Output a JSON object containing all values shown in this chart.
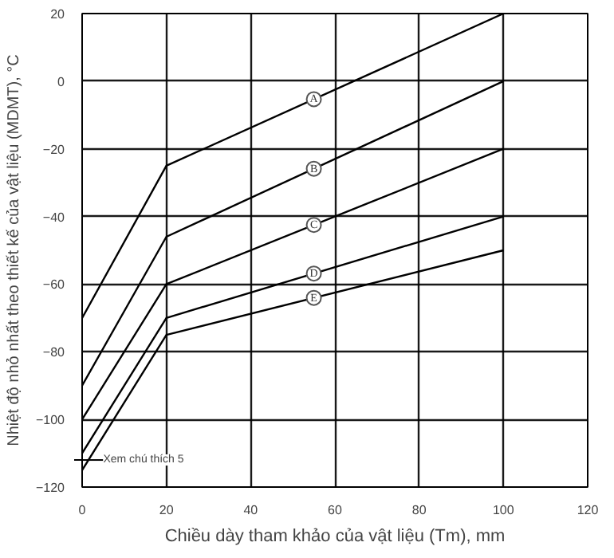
{
  "chart_data": {
    "type": "line",
    "xlabel": "Chiều dày tham khảo của vật liệu (Tm), mm",
    "ylabel": "Nhiệt độ nhỏ nhất theo thiết kế của vật liệu (MDMT), °C",
    "x": [
      0,
      20,
      100
    ],
    "series": [
      {
        "name": "A",
        "color": "#000000",
        "values": [
          -70,
          -25,
          20
        ]
      },
      {
        "name": "B",
        "color": "#000000",
        "values": [
          -90,
          -46,
          0
        ]
      },
      {
        "name": "C",
        "color": "#000000",
        "values": [
          -100,
          -60,
          -20
        ]
      },
      {
        "name": "D",
        "color": "#000000",
        "values": [
          -110,
          -70,
          -40
        ]
      },
      {
        "name": "E",
        "color": "#000000",
        "values": [
          -115,
          -75,
          -50
        ]
      }
    ],
    "xlim": [
      0,
      120
    ],
    "ylim": [
      -120,
      20
    ],
    "xticks": [
      0,
      20,
      40,
      60,
      80,
      100,
      120
    ],
    "yticks": [
      -120,
      -100,
      -80,
      -60,
      -40,
      -20,
      0,
      20
    ],
    "grid": true,
    "marker": "none",
    "line_style": "solid",
    "annotations": [
      {
        "text": "Xem chú thích 5",
        "x": 0,
        "y": -112
      }
    ]
  }
}
